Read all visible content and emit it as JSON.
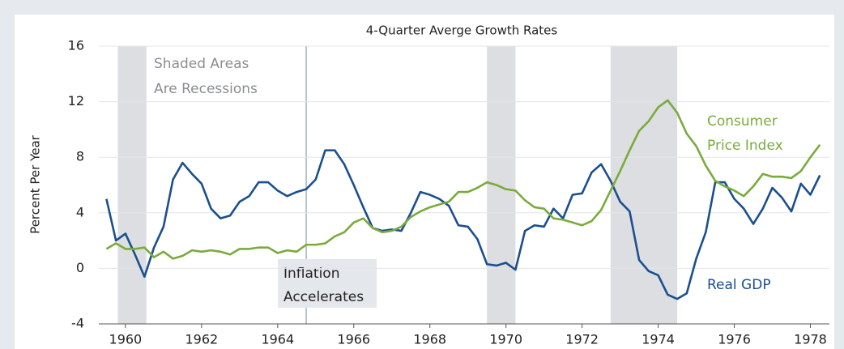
{
  "chart_data": {
    "type": "line",
    "title": "4-Quarter Averge Growth Rates",
    "y_label": "Percent Per Year",
    "x": [
      1960,
      1960.25,
      1960.5,
      1960.75,
      1961,
      1961.25,
      1961.5,
      1961.75,
      1962,
      1962.25,
      1962.5,
      1962.75,
      1963,
      1963.25,
      1963.5,
      1963.75,
      1964,
      1964.25,
      1964.5,
      1964.75,
      1965,
      1965.25,
      1965.5,
      1965.75,
      1966,
      1966.25,
      1966.5,
      1966.75,
      1967,
      1967.25,
      1967.5,
      1967.75,
      1968,
      1968.25,
      1968.5,
      1968.75,
      1969,
      1969.25,
      1969.5,
      1969.75,
      1970,
      1970.25,
      1970.5,
      1970.75,
      1971,
      1971.25,
      1971.5,
      1971.75,
      1972,
      1972.25,
      1972.5,
      1972.75,
      1973,
      1973.25,
      1973.5,
      1973.75,
      1974,
      1974.25,
      1974.5,
      1974.75,
      1975,
      1975.25,
      1975.5,
      1975.75,
      1976,
      1976.25,
      1976.5,
      1976.75,
      1977,
      1977.25,
      1977.5,
      1977.75,
      1978,
      1978.25,
      1978.5,
      1978.75
    ],
    "series": [
      {
        "name": "Real GDP",
        "color": "#1b4f8e",
        "values": [
          5.0,
          2.0,
          2.5,
          1.0,
          -0.6,
          1.5,
          3.0,
          6.4,
          7.6,
          6.8,
          6.1,
          4.3,
          3.6,
          3.8,
          4.8,
          5.2,
          6.2,
          6.2,
          5.6,
          5.2,
          5.5,
          5.7,
          6.4,
          8.5,
          8.5,
          7.5,
          6.0,
          4.4,
          2.9,
          2.7,
          2.8,
          2.7,
          4.0,
          5.5,
          5.3,
          5.0,
          4.5,
          3.1,
          3.0,
          2.1,
          0.3,
          0.2,
          0.4,
          -0.1,
          2.7,
          3.1,
          3.0,
          4.3,
          3.6,
          5.3,
          5.4,
          6.9,
          7.5,
          6.3,
          4.8,
          4.1,
          0.6,
          -0.2,
          -0.5,
          -1.9,
          -2.2,
          -1.8,
          0.7,
          2.6,
          6.2,
          6.2,
          5.0,
          4.3,
          3.2,
          4.3,
          5.8,
          5.1,
          4.1,
          6.1,
          5.3,
          6.7
        ]
      },
      {
        "name": "Consumer Price Index",
        "color": "#7aab3c",
        "values": [
          1.4,
          1.8,
          1.4,
          1.4,
          1.5,
          0.8,
          1.2,
          0.7,
          0.9,
          1.3,
          1.2,
          1.3,
          1.2,
          1.0,
          1.4,
          1.4,
          1.5,
          1.5,
          1.1,
          1.3,
          1.2,
          1.7,
          1.7,
          1.8,
          2.3,
          2.6,
          3.3,
          3.6,
          2.9,
          2.6,
          2.7,
          3.0,
          3.7,
          4.1,
          4.4,
          4.6,
          4.8,
          5.5,
          5.5,
          5.8,
          6.2,
          6.0,
          5.7,
          5.6,
          4.9,
          4.4,
          4.3,
          3.6,
          3.5,
          3.3,
          3.1,
          3.4,
          4.2,
          5.6,
          7.0,
          8.5,
          9.9,
          10.6,
          11.6,
          12.1,
          11.2,
          9.7,
          8.8,
          7.4,
          6.3,
          5.9,
          5.6,
          5.2,
          5.9,
          6.8,
          6.6,
          6.6,
          6.5,
          7.0,
          8.0,
          8.9
        ]
      }
    ],
    "series_labels": [
      [
        "Real GDP"
      ],
      [
        "Consumer",
        "Price Index"
      ]
    ],
    "xlim": [
      1959.8,
      1979.0
    ],
    "ylim": [
      -4,
      16
    ],
    "xticks": [
      {
        "value": 1960.5,
        "label": "1960"
      },
      {
        "value": 1962.5,
        "label": "1962"
      },
      {
        "value": 1964.5,
        "label": "1964"
      },
      {
        "value": 1966.5,
        "label": "1966"
      },
      {
        "value": 1968.5,
        "label": "1968"
      },
      {
        "value": 1970.5,
        "label": "1970"
      },
      {
        "value": 1972.5,
        "label": "1972"
      },
      {
        "value": 1974.5,
        "label": "1974"
      },
      {
        "value": 1976.5,
        "label": "1976"
      },
      {
        "value": 1978.5,
        "label": "1978"
      }
    ],
    "yticks": [
      -4,
      0,
      4,
      8,
      12,
      16
    ],
    "recessions": [
      [
        1960.3,
        1961.05
      ],
      [
        1970.0,
        1970.75
      ],
      [
        1973.25,
        1975.0
      ]
    ],
    "recession_note": [
      "Shaded Areas",
      "Are Recessions"
    ],
    "event": {
      "x": 1965.25,
      "label": [
        "Inflation",
        "Accelerates"
      ]
    }
  }
}
